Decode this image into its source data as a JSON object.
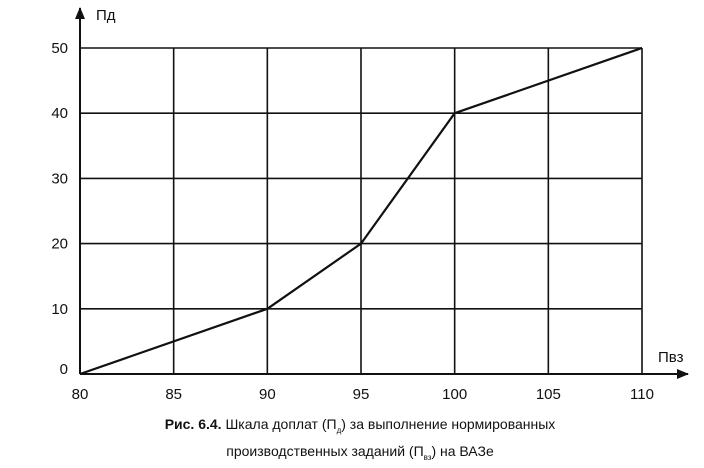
{
  "chart_data": {
    "type": "line",
    "xlabel": "Пвз",
    "ylabel": "Пд",
    "x": [
      80,
      90,
      95,
      100,
      110
    ],
    "series": [
      {
        "values": [
          0,
          10,
          20,
          40,
          50
        ]
      }
    ],
    "xlim": [
      80,
      110
    ],
    "ylim": [
      0,
      50
    ],
    "xticks": [
      80,
      85,
      90,
      95,
      100,
      105,
      110
    ],
    "yticks": [
      0,
      10,
      20,
      30,
      40,
      50
    ],
    "grid": true,
    "line_color": "#111111"
  },
  "caption": {
    "prefix": "Рис. 6.4.",
    "part1": "Шкала доплат (П",
    "sub1": "д",
    "part2": ") за выполнение нормированных",
    "part3": "производственных заданий (П",
    "sub2": "вз",
    "part4": ") на ВАЗе"
  }
}
